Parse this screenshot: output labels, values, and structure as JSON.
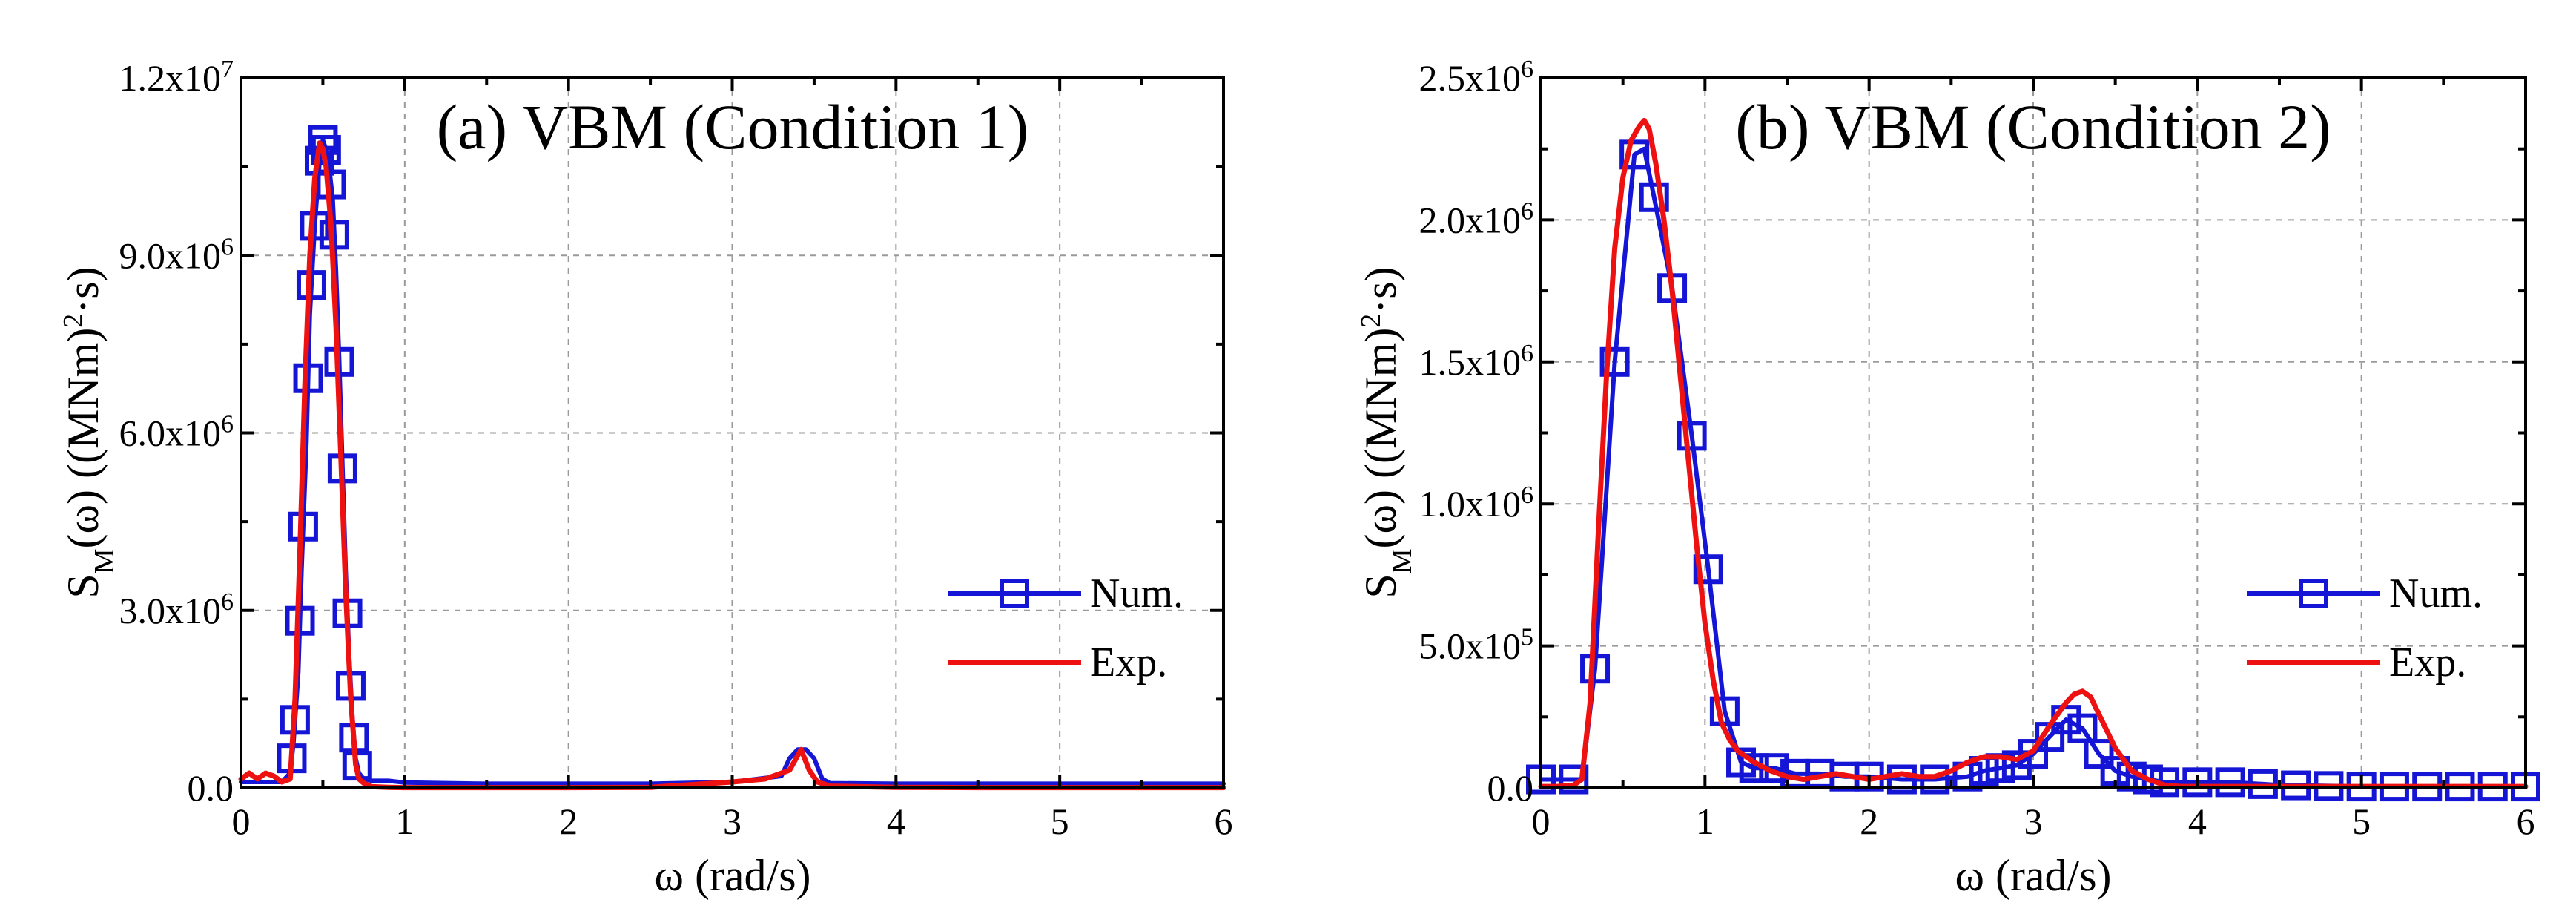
{
  "chart_data": [
    {
      "type": "line",
      "title": "(a) VBM (Condition 1)",
      "xlabel": "ω (rad/s)",
      "ylabel": {
        "base": "S",
        "sub": "M",
        "mid": "(ω) ((MNm)",
        "sup": "2",
        "end": "·s)"
      },
      "xlim": [
        0,
        6
      ],
      "ylim": [
        0,
        12000000
      ],
      "grid": true,
      "legend_position": "right",
      "x_ticks": [
        0,
        1,
        2,
        3,
        4,
        5,
        6
      ],
      "x_tick_labels": [
        "0",
        "1",
        "2",
        "3",
        "4",
        "5",
        "6"
      ],
      "y_ticks": [
        0,
        3000000,
        6000000,
        9000000,
        12000000
      ],
      "y_tick_labels": [
        {
          "base": "0.0",
          "exp": ""
        },
        {
          "base": "3.0x10",
          "exp": "6"
        },
        {
          "base": "6.0x10",
          "exp": "6"
        },
        {
          "base": "9.0x10",
          "exp": "6"
        },
        {
          "base": "1.2x10",
          "exp": "7"
        }
      ],
      "series": [
        {
          "name": "Num.",
          "color": "#1515d6",
          "marker": "square",
          "x": [
            0.0,
            0.05,
            0.1,
            0.15,
            0.2,
            0.25,
            0.3,
            0.32,
            0.35,
            0.37,
            0.4,
            0.42,
            0.45,
            0.48,
            0.5,
            0.53,
            0.56,
            0.58,
            0.6,
            0.62,
            0.64,
            0.66,
            0.68,
            0.7,
            0.72,
            0.75,
            0.8,
            0.9,
            1.0,
            1.5,
            2.0,
            2.5,
            3.0,
            3.3,
            3.35,
            3.4,
            3.45,
            3.5,
            3.55,
            3.6,
            4.0,
            4.5,
            5.0,
            5.5,
            6.0
          ],
          "y": [
            100000,
            100000,
            100000,
            100000,
            100000,
            100000,
            250000,
            750000,
            1950000,
            3700000,
            5850000,
            8000000,
            9500000,
            10600000,
            10950000,
            10700000,
            9950000,
            8750000,
            7200000,
            5400000,
            3650000,
            2250000,
            1200000,
            500000,
            250000,
            150000,
            120000,
            120000,
            90000,
            70000,
            70000,
            70000,
            100000,
            200000,
            500000,
            650000,
            650000,
            500000,
            150000,
            80000,
            70000,
            70000,
            70000,
            70000,
            70000
          ],
          "marker_x": [
            0.31,
            0.33,
            0.36,
            0.38,
            0.41,
            0.43,
            0.45,
            0.48,
            0.5,
            0.52,
            0.55,
            0.57,
            0.6,
            0.62,
            0.65,
            0.67,
            0.69,
            0.71
          ]
        },
        {
          "name": "Exp.",
          "color": "#ee1111",
          "marker": "none",
          "x": [
            0.0,
            0.05,
            0.1,
            0.15,
            0.2,
            0.25,
            0.3,
            0.33,
            0.36,
            0.39,
            0.42,
            0.45,
            0.48,
            0.5,
            0.52,
            0.55,
            0.58,
            0.61,
            0.64,
            0.67,
            0.7,
            0.72,
            0.75,
            0.8,
            0.9,
            1.0,
            1.5,
            2.0,
            2.5,
            3.0,
            3.2,
            3.35,
            3.42,
            3.47,
            3.52,
            3.6,
            4.0,
            4.5,
            5.0,
            5.5,
            6.0
          ],
          "y": [
            150000,
            250000,
            150000,
            250000,
            200000,
            100000,
            150000,
            1500000,
            4000000,
            6800000,
            9000000,
            10300000,
            10900000,
            10800000,
            10500000,
            9500000,
            7800000,
            5600000,
            3300000,
            1500000,
            400000,
            150000,
            80000,
            20000,
            10000,
            5000,
            5000,
            5000,
            10000,
            100000,
            150000,
            300000,
            650000,
            300000,
            100000,
            30000,
            10000,
            5000,
            5000,
            5000,
            5000
          ]
        }
      ]
    },
    {
      "type": "line",
      "title": "(b) VBM (Condition 2)",
      "xlabel": "ω (rad/s)",
      "ylabel": {
        "base": "S",
        "sub": "M",
        "mid": "(ω) ((MNm)",
        "sup": "2",
        "end": "·s)"
      },
      "xlim": [
        0,
        6
      ],
      "ylim": [
        0,
        2500000
      ],
      "grid": true,
      "legend_position": "right",
      "x_ticks": [
        0,
        1,
        2,
        3,
        4,
        5,
        6
      ],
      "x_tick_labels": [
        "0",
        "1",
        "2",
        "3",
        "4",
        "5",
        "6"
      ],
      "y_ticks": [
        0,
        500000,
        1000000,
        1500000,
        2000000,
        2500000
      ],
      "y_tick_labels": [
        {
          "base": "0.0",
          "exp": ""
        },
        {
          "base": "5.0x10",
          "exp": "5"
        },
        {
          "base": "1.0x10",
          "exp": "6"
        },
        {
          "base": "1.5x10",
          "exp": "6"
        },
        {
          "base": "2.0x10",
          "exp": "6"
        },
        {
          "base": "2.5x10",
          "exp": "6"
        }
      ],
      "series": [
        {
          "name": "Num.",
          "color": "#1515d6",
          "marker": "square",
          "x": [
            0.0,
            0.1,
            0.2,
            0.25,
            0.33,
            0.45,
            0.57,
            0.63,
            0.69,
            0.8,
            0.92,
            1.02,
            1.12,
            1.22,
            1.3,
            1.42,
            1.55,
            1.7,
            1.85,
            2.0,
            2.2,
            2.4,
            2.6,
            2.7,
            2.8,
            2.9,
            3.0,
            3.1,
            3.2,
            3.3,
            3.4,
            3.5,
            3.6,
            3.7,
            3.8,
            4.0,
            4.2,
            4.5,
            5.0,
            5.5,
            6.0
          ],
          "y": [
            30000,
            30000,
            30000,
            30000,
            420000,
            1500000,
            2230000,
            2250000,
            2080000,
            1760000,
            1240000,
            770000,
            270000,
            90000,
            70000,
            70000,
            50000,
            50000,
            40000,
            40000,
            30000,
            30000,
            40000,
            60000,
            70000,
            80000,
            120000,
            180000,
            240000,
            210000,
            120000,
            60000,
            40000,
            30000,
            20000,
            20000,
            20000,
            10000,
            5000,
            5000,
            5000
          ],
          "marker_x": [
            0.0,
            0.2,
            0.33,
            0.45,
            0.57,
            0.69,
            0.8,
            0.92,
            1.02,
            1.12,
            1.22,
            1.3,
            1.42,
            1.55,
            1.7,
            1.85,
            2.0,
            2.2,
            2.4,
            2.6,
            2.7,
            2.8,
            2.9,
            3.0,
            3.1,
            3.2,
            3.3,
            3.4,
            3.5,
            3.6,
            3.7,
            3.8,
            4.0,
            4.2,
            4.4,
            4.6,
            4.8,
            5.0,
            5.2,
            5.4,
            5.6,
            5.8,
            6.0
          ]
        },
        {
          "name": "Exp.",
          "color": "#ee1111",
          "marker": "none",
          "x": [
            0.0,
            0.1,
            0.2,
            0.25,
            0.3,
            0.35,
            0.4,
            0.45,
            0.5,
            0.55,
            0.6,
            0.63,
            0.66,
            0.7,
            0.75,
            0.8,
            0.85,
            0.9,
            0.95,
            1.0,
            1.05,
            1.1,
            1.15,
            1.2,
            1.3,
            1.4,
            1.5,
            1.6,
            1.7,
            1.8,
            1.9,
            2.0,
            2.1,
            2.2,
            2.3,
            2.4,
            2.5,
            2.6,
            2.7,
            2.8,
            2.9,
            3.0,
            3.1,
            3.2,
            3.25,
            3.3,
            3.35,
            3.4,
            3.5,
            3.6,
            3.7,
            3.8,
            3.9,
            4.0,
            4.5,
            5.0,
            5.5,
            6.0
          ],
          "y": [
            5000,
            5000,
            10000,
            30000,
            300000,
            900000,
            1450000,
            1900000,
            2150000,
            2280000,
            2330000,
            2350000,
            2320000,
            2200000,
            2000000,
            1750000,
            1450000,
            1150000,
            850000,
            580000,
            380000,
            230000,
            170000,
            130000,
            90000,
            60000,
            40000,
            30000,
            40000,
            50000,
            40000,
            30000,
            40000,
            50000,
            40000,
            40000,
            60000,
            90000,
            110000,
            110000,
            100000,
            130000,
            220000,
            300000,
            330000,
            340000,
            320000,
            260000,
            140000,
            60000,
            30000,
            10000,
            5000,
            5000,
            5000,
            5000,
            5000,
            5000
          ]
        }
      ]
    }
  ]
}
